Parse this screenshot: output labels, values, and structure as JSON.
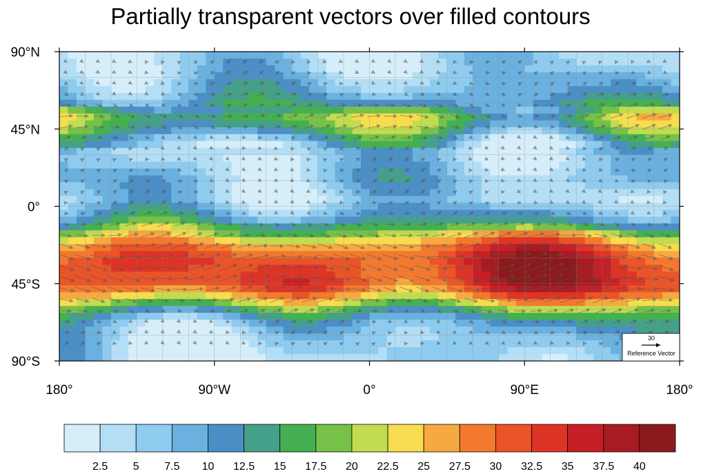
{
  "chart_data": {
    "type": "heatmap",
    "title": "Partially transparent vectors over filled contours",
    "x_ticks": [
      "180°",
      "90°W",
      "0°",
      "90°E",
      "180°"
    ],
    "x_tick_values": [
      -180,
      -90,
      0,
      90,
      180
    ],
    "y_ticks": [
      "90°N",
      "45°N",
      "0°",
      "45°S",
      "90°S"
    ],
    "y_tick_values": [
      90,
      45,
      0,
      -45,
      -90
    ],
    "xlim": [
      -180,
      180
    ],
    "ylim": [
      -90,
      90
    ],
    "grid": true,
    "overlay": "vectors",
    "colorbar": {
      "orientation": "horizontal",
      "placement": "bottom",
      "levels": [
        "2.5",
        "5",
        "7.5",
        "10",
        "12.5",
        "15",
        "17.5",
        "20",
        "22.5",
        "25",
        "27.5",
        "30",
        "32.5",
        "35",
        "37.5",
        "40"
      ],
      "colors": [
        "#d6eefa",
        "#b3def5",
        "#8ecbef",
        "#6ab1e0",
        "#4b8fc6",
        "#45a08a",
        "#44b051",
        "#78c148",
        "#c2dc50",
        "#f7dc4f",
        "#f6a940",
        "#f3792f",
        "#ea5428",
        "#de3426",
        "#c81e25",
        "#a81b21",
        "#8b1a1d"
      ]
    },
    "zonal_profile": {
      "lat": [
        90,
        80,
        72,
        65,
        58,
        52,
        46,
        40,
        34,
        28,
        22,
        16,
        10,
        4,
        -2,
        -8,
        -14,
        -18,
        -22,
        -26,
        -30,
        -34,
        -38,
        -42,
        -46,
        -50,
        -54,
        -58,
        -62,
        -66,
        -70,
        -76,
        -82,
        -90
      ],
      "speed": [
        4,
        5,
        7,
        9,
        13,
        18,
        16,
        10,
        6,
        5,
        6,
        7,
        6,
        5,
        8,
        12,
        19,
        24,
        28,
        31,
        33,
        34,
        33,
        34,
        33,
        29,
        25,
        19,
        14,
        10,
        8,
        6,
        5,
        4
      ]
    },
    "reference_vector": {
      "magnitude": "30",
      "label": "Reference Vector"
    }
  }
}
